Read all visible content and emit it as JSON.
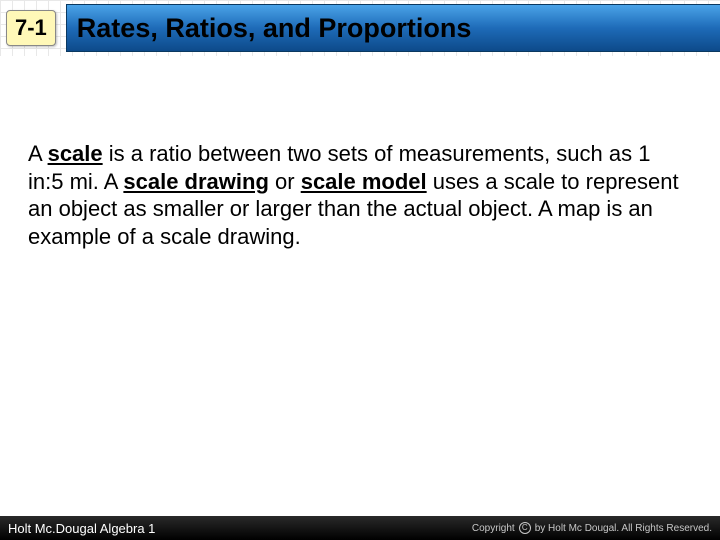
{
  "header": {
    "lesson_number": "7-1",
    "title": "Rates, Ratios, and Proportions",
    "badge_bg": "#fff8b8",
    "title_gradient_top": "#4aa3e8",
    "title_gradient_mid": "#1e6bb8",
    "title_gradient_bot": "#0d4a8a"
  },
  "body": {
    "seg1": "A ",
    "term1": "scale",
    "seg2": " is a ratio between two sets of measurements, such as 1 in:5 mi. A ",
    "term2": "scale drawing",
    "seg3": " or ",
    "term3": "scale model",
    "seg4": " uses a scale to represent an object as smaller or larger than the actual object. A map is an example of a scale drawing.",
    "font_size": 22,
    "text_color": "#000000"
  },
  "footer": {
    "left": "Holt Mc.Dougal Algebra 1",
    "right_prefix": "Copyright",
    "right_suffix": "by Holt Mc Dougal. All Rights Reserved.",
    "bg": "#000000",
    "text_color": "#ffffff"
  }
}
